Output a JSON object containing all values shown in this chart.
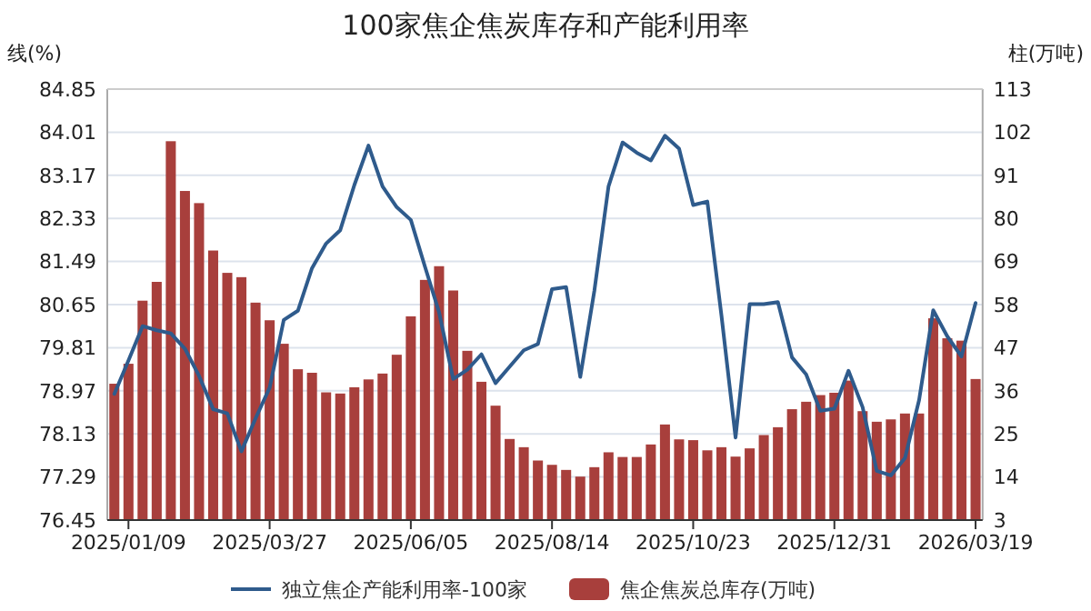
{
  "chart_data": {
    "type": "bar",
    "title": "100家焦企焦炭库存和产能利用率",
    "ylabel": "线(%)",
    "y2label": "柱(万吨)",
    "categories": [
      null,
      "2025/01/09",
      null,
      null,
      null,
      null,
      null,
      null,
      null,
      null,
      null,
      "2025/03/27",
      null,
      null,
      null,
      null,
      null,
      null,
      null,
      null,
      null,
      "2025/06/05",
      null,
      null,
      null,
      null,
      null,
      null,
      null,
      null,
      null,
      "2025/08/14",
      null,
      null,
      null,
      null,
      null,
      null,
      null,
      null,
      null,
      "2025/10/23",
      null,
      null,
      null,
      null,
      null,
      null,
      null,
      null,
      null,
      "2025/12/31",
      null,
      null,
      null,
      null,
      null,
      null,
      null,
      null,
      null,
      "2026/03/19"
    ],
    "series": [
      {
        "name": "独立焦企产能利用率-100家",
        "type": "line",
        "axis": "y",
        "color": "#2f5b8c",
        "values": [
          78.91,
          79.56,
          80.23,
          80.15,
          80.09,
          79.79,
          79.26,
          78.61,
          78.53,
          77.79,
          78.43,
          79.03,
          80.35,
          80.53,
          81.36,
          81.84,
          82.1,
          82.98,
          83.75,
          82.95,
          82.55,
          82.3,
          81.39,
          80.5,
          79.2,
          79.38,
          79.68,
          79.12,
          79.44,
          79.76,
          79.88,
          80.95,
          80.99,
          79.24,
          80.92,
          82.95,
          83.81,
          83.61,
          83.46,
          83.94,
          83.69,
          82.59,
          82.66,
          80.44,
          78.06,
          80.66,
          80.66,
          80.7,
          79.62,
          79.29,
          78.58,
          78.62,
          79.36,
          78.65,
          77.41,
          77.32,
          77.66,
          78.79,
          80.54,
          80.03,
          79.64,
          80.68
        ]
      },
      {
        "name": "焦企焦炭总库存(万吨)",
        "axis": "y2",
        "color": "#a83f3c",
        "values": [
          37.8,
          42.9,
          59.0,
          63.8,
          99.7,
          87.0,
          83.9,
          71.8,
          66.1,
          65.0,
          58.5,
          54.0,
          48.0,
          41.5,
          40.6,
          35.6,
          35.3,
          36.9,
          38.9,
          40.4,
          45.2,
          55.0,
          64.3,
          67.8,
          61.6,
          46.2,
          38.3,
          32.2,
          23.7,
          21.6,
          18.2,
          17.1,
          15.8,
          14.1,
          16.5,
          20.3,
          19.1,
          19.1,
          22.3,
          27.4,
          23.6,
          23.4,
          20.8,
          21.6,
          19.2,
          21.3,
          24.7,
          26.7,
          31.3,
          33.2,
          34.9,
          35.5,
          38.6,
          30.8,
          28.1,
          28.7,
          30.2,
          30.2,
          54.5,
          49.4,
          48.8,
          39.0
        ]
      }
    ],
    "ylim": [
      76.45,
      84.85
    ],
    "yticks": [
      76.45,
      77.29,
      78.13,
      78.97,
      79.81,
      80.65,
      81.49,
      82.33,
      83.17,
      84.01,
      84.85
    ],
    "y2lim": [
      3,
      113
    ],
    "y2ticks": [
      3,
      14,
      25,
      36,
      47,
      58,
      69,
      80,
      91,
      102,
      113
    ],
    "grid": "y",
    "legend": "bottom"
  }
}
